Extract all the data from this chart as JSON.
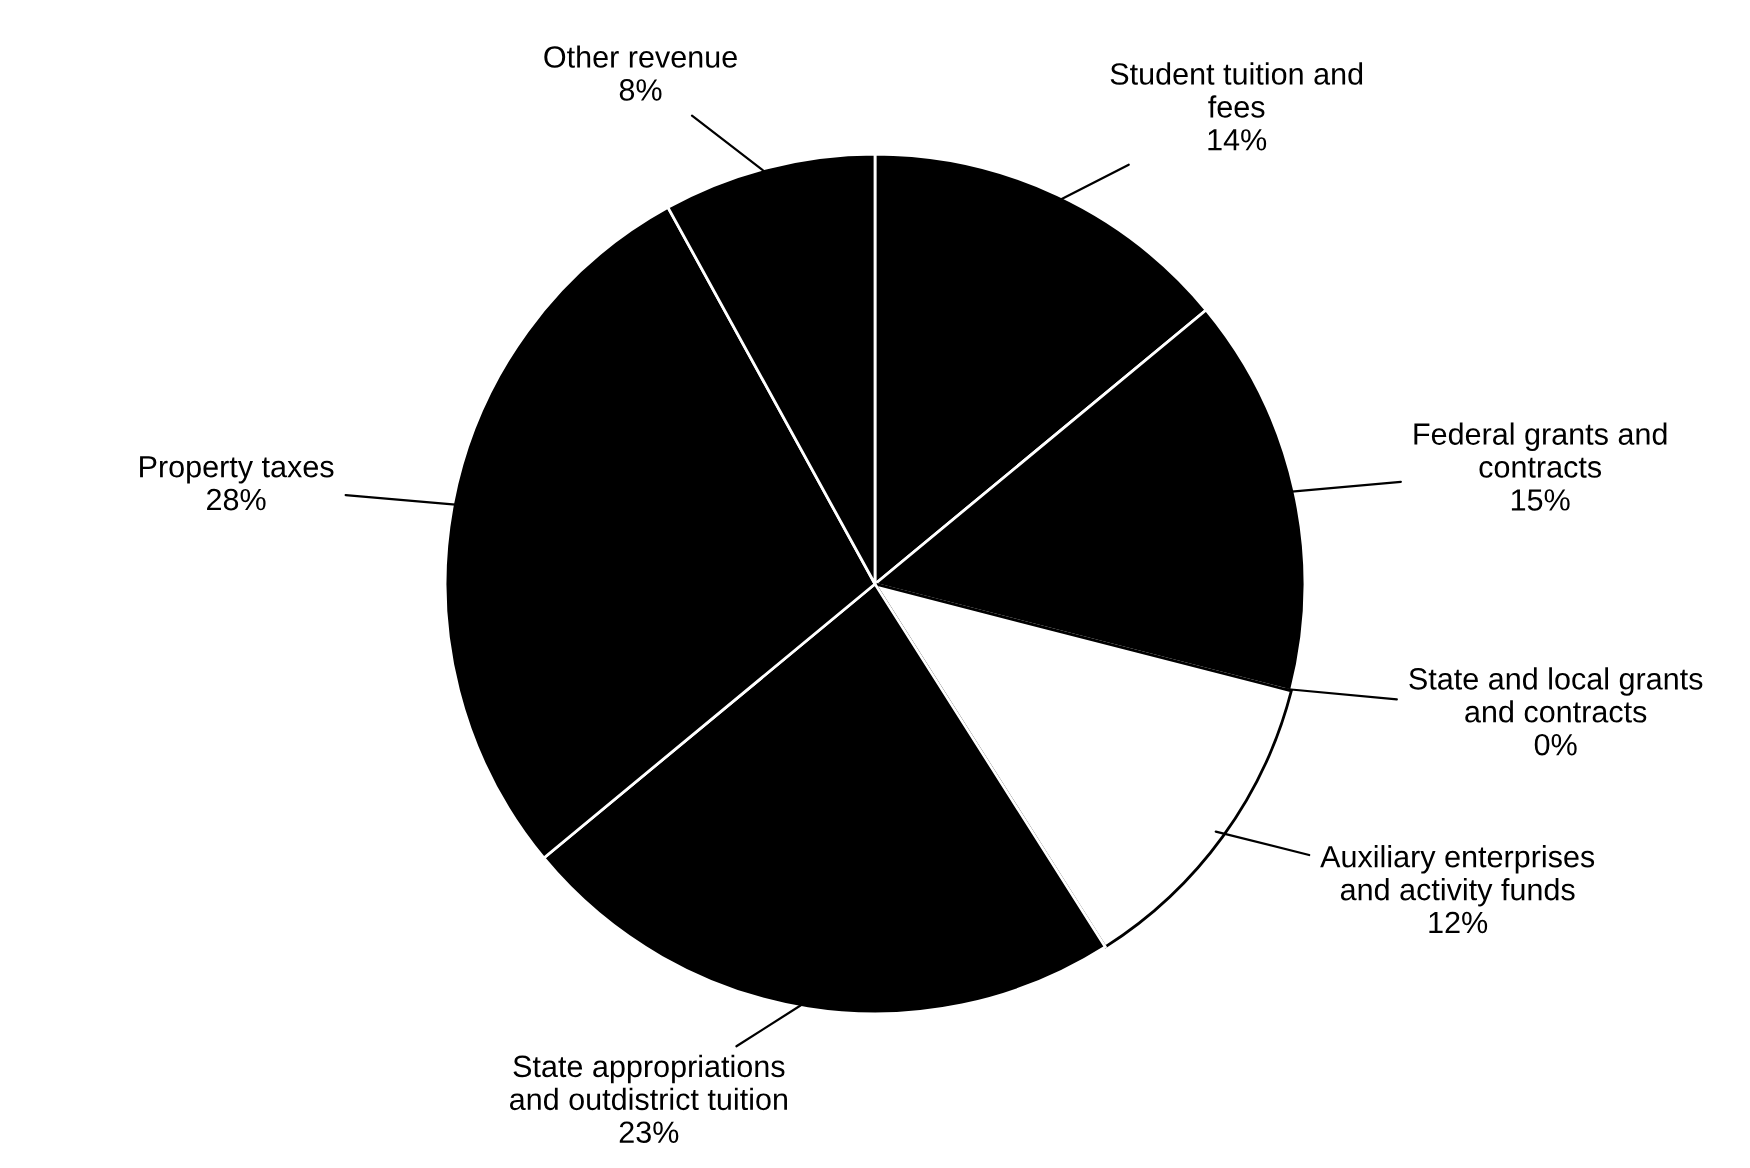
{
  "chart_data": {
    "type": "pie",
    "categories": [
      "Student tuition and\nfees",
      "Federal grants and\ncontracts",
      "State and local grants\nand contracts",
      "Auxiliary enterprises\nand activity funds",
      "State appropriations\nand outdistrict tuition",
      "Property taxes",
      "Other revenue"
    ],
    "values": [
      14,
      15,
      0,
      12,
      23,
      28,
      8
    ],
    "value_labels": [
      "14%",
      "15%",
      "0%",
      "12%",
      "23%",
      "28%",
      "8%"
    ],
    "colors": [
      "#000000",
      "#000000",
      "#000000",
      "#ffffff",
      "#000000",
      "#000000",
      "#000000"
    ]
  }
}
